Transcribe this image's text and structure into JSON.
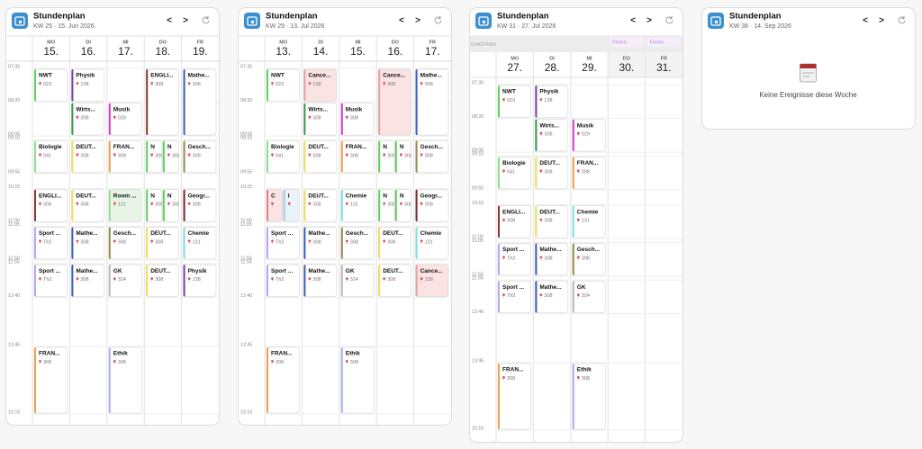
{
  "cards": [
    {
      "title": "Stundenplan",
      "subtitle": "KW 25 · 15. Jun 2026",
      "prev": "<",
      "next": ">",
      "times": [
        "07:35",
        "08:20",
        "09:05",
        "09:10",
        "09:55",
        "10:15",
        "11:00",
        "11:05",
        "11:50",
        "11:55",
        "12:40",
        "13:45",
        "15:15"
      ],
      "days": [
        {
          "dow": "MO",
          "date": "15.",
          "events": [
            {
              "title": "NWT",
              "room": "023",
              "color": "#5fd35f"
            },
            {
              "title": "Biologie",
              "room": "041",
              "color": "#8fe08f"
            },
            {
              "title": "ENGLI...",
              "room": "308",
              "color": "#8a3a2a"
            },
            {
              "title": "Sport ...",
              "room": "Th2",
              "color": "#b9a8f0"
            },
            {
              "title": "Sport ...",
              "room": "Th2",
              "color": "#b9a8f0"
            },
            {
              "title": "FRAN...",
              "room": "308",
              "color": "#f0a050"
            }
          ]
        },
        {
          "dow": "DI",
          "date": "16.",
          "events": [
            {
              "title": "Physik",
              "room": "138",
              "color": "#7a3fb0"
            },
            {
              "title": "Wirts...",
              "room": "308",
              "color": "#3a9a4a"
            },
            {
              "title": "DEUT...",
              "room": "308",
              "color": "#f0e060"
            },
            {
              "title": "DEUT...",
              "room": "308",
              "color": "#f0e060"
            },
            {
              "title": "Mathe...",
              "room": "308",
              "color": "#3a60c0"
            },
            {
              "title": "Mathe...",
              "room": "308",
              "color": "#3a60c0"
            }
          ]
        },
        {
          "dow": "MI",
          "date": "17.",
          "events": [
            {
              "title": "Musik",
              "room": "029",
              "color": "#d040d0"
            },
            {
              "title": "FRAN...",
              "room": "308",
              "color": "#f0a050"
            },
            {
              "title": "Room ...",
              "room": "121",
              "color": "#9bd89b",
              "fill": "#e6f5e6"
            },
            {
              "title": "Gesch...",
              "room": "308",
              "color": "#9a8a50"
            },
            {
              "title": "GK",
              "room": "324",
              "color": "#bbbbbb"
            },
            {
              "title": "Ethik",
              "room": "308",
              "color": "#a9b4e8"
            }
          ]
        },
        {
          "dow": "DO",
          "date": "18.",
          "events": [
            {
              "title": "ENGLI...",
              "room": "308",
              "color": "#8a3a2a"
            },
            {
              "title": "N",
              "room": "308",
              "color": "#5fd35f"
            },
            {
              "title": "N",
              "room": "308",
              "color": "#5fd35f"
            },
            {
              "title": "N",
              "room": "308",
              "color": "#5fd35f"
            },
            {
              "title": "N",
              "room": "308",
              "color": "#5fd35f"
            },
            {
              "title": "DEUT...",
              "room": "308",
              "color": "#f0e060"
            },
            {
              "title": "DEUT...",
              "room": "308",
              "color": "#f0e060"
            }
          ]
        },
        {
          "dow": "FR",
          "date": "19.",
          "events": [
            {
              "title": "Mathe...",
              "room": "308",
              "color": "#3a60c0"
            },
            {
              "title": "Gesch...",
              "room": "308",
              "color": "#9a8a50"
            },
            {
              "title": "Geogr...",
              "room": "308",
              "color": "#7a2a2a"
            },
            {
              "title": "Chemie",
              "room": "131",
              "color": "#80e0e8"
            },
            {
              "title": "Physik",
              "room": "138",
              "color": "#7a3fb0"
            }
          ]
        }
      ]
    },
    {
      "title": "Stundenplan",
      "subtitle": "KW 29 · 13. Jul 2026",
      "prev": "<",
      "next": ">",
      "times": [
        "07:35",
        "08:20",
        "09:05",
        "09:10",
        "09:55",
        "10:15",
        "11:00",
        "11:05",
        "11:50",
        "11:55",
        "12:40",
        "13:45",
        "15:15"
      ],
      "days": [
        {
          "dow": "MO",
          "date": "13.",
          "events": [
            {
              "title": "NWT",
              "room": "023",
              "color": "#5fd35f"
            },
            {
              "title": "Biologie",
              "room": "041",
              "color": "#8fe08f"
            },
            {
              "title": "C",
              "color": "#e08080",
              "fill": "#fbe3e3"
            },
            {
              "title": "I",
              "color": "#a8c8e8",
              "fill": "#eaf2fa"
            },
            {
              "title": "Sport ...",
              "room": "Th2",
              "color": "#b9a8f0"
            },
            {
              "title": "Sport ...",
              "room": "Th2",
              "color": "#b9a8f0"
            },
            {
              "title": "FRAN...",
              "room": "308",
              "color": "#f0a050"
            }
          ]
        },
        {
          "dow": "DI",
          "date": "14.",
          "events": [
            {
              "title": "Cance...",
              "room": "138",
              "color": "#e8a0a0",
              "fill": "#fbe3e3"
            },
            {
              "title": "Wirts...",
              "room": "308",
              "color": "#3a9a4a"
            },
            {
              "title": "DEUT...",
              "room": "308",
              "color": "#f0e060"
            },
            {
              "title": "DEUT...",
              "room": "308",
              "color": "#f0e060"
            },
            {
              "title": "Mathe...",
              "room": "308",
              "color": "#3a60c0"
            },
            {
              "title": "Mathe...",
              "room": "308",
              "color": "#3a60c0"
            }
          ]
        },
        {
          "dow": "MI",
          "date": "15.",
          "events": [
            {
              "title": "Musik",
              "room": "308",
              "color": "#d040d0"
            },
            {
              "title": "FRAN...",
              "room": "308",
              "color": "#f0a050"
            },
            {
              "title": "Chemie",
              "room": "131",
              "color": "#80e0e8"
            },
            {
              "title": "Gesch...",
              "room": "308",
              "color": "#9a8a50"
            },
            {
              "title": "GK",
              "room": "324",
              "color": "#bbbbbb"
            },
            {
              "title": "Ethik",
              "room": "308",
              "color": "#a9b4e8"
            }
          ]
        },
        {
          "dow": "DO",
          "date": "16.",
          "events": [
            {
              "title": "Cance...",
              "room": "308",
              "color": "#e8a0a0",
              "fill": "#fbe3e3"
            },
            {
              "title": "N",
              "room": "308",
              "color": "#5fd35f"
            },
            {
              "title": "N",
              "room": "308",
              "color": "#5fd35f"
            },
            {
              "title": "N",
              "room": "308",
              "color": "#5fd35f"
            },
            {
              "title": "N",
              "room": "308",
              "color": "#5fd35f"
            },
            {
              "title": "DEUT...",
              "room": "308",
              "color": "#f0e060"
            },
            {
              "title": "DEUT...",
              "room": "308",
              "color": "#f0e060"
            }
          ]
        },
        {
          "dow": "FR",
          "date": "17.",
          "events": [
            {
              "title": "Mathe...",
              "room": "308",
              "color": "#3a60c0"
            },
            {
              "title": "Gesch...",
              "room": "308",
              "color": "#9a8a50"
            },
            {
              "title": "Geogr...",
              "room": "308",
              "color": "#7a2a2a"
            },
            {
              "title": "Chemie",
              "room": "131",
              "color": "#80e0e8"
            },
            {
              "title": "Cance...",
              "room": "138",
              "color": "#e8a0a0",
              "fill": "#fbe3e3"
            }
          ]
        }
      ]
    },
    {
      "title": "Stundenplan",
      "subtitle": "KW 31 · 27. Jul 2026",
      "prev": "<",
      "next": ">",
      "allday_label": "GANZTÄGIG",
      "times": [
        "07:35",
        "08:20",
        "09:05",
        "09:10",
        "09:55",
        "10:15",
        "11:00",
        "11:05",
        "11:50",
        "11:55",
        "12:40",
        "13:45",
        "15:15"
      ],
      "days": [
        {
          "dow": "MO",
          "date": "27.",
          "events": [
            {
              "title": "NWT",
              "room": "023",
              "color": "#5fd35f"
            },
            {
              "title": "Biologie",
              "room": "041",
              "color": "#8fe08f"
            },
            {
              "title": "ENGLI...",
              "room": "308",
              "color": "#8a3a2a"
            },
            {
              "title": "Sport ...",
              "room": "Th2",
              "color": "#b9a8f0"
            },
            {
              "title": "Sport ...",
              "room": "Th2",
              "color": "#b9a8f0"
            },
            {
              "title": "FRAN...",
              "room": "308",
              "color": "#f0a050"
            }
          ]
        },
        {
          "dow": "DI",
          "date": "28.",
          "events": [
            {
              "title": "Physik",
              "room": "138",
              "color": "#7a3fb0"
            },
            {
              "title": "Wirts...",
              "room": "308",
              "color": "#3a9a4a"
            },
            {
              "title": "DEUT...",
              "room": "308",
              "color": "#f0e060"
            },
            {
              "title": "DEUT...",
              "room": "308",
              "color": "#f0e060"
            },
            {
              "title": "Mathe...",
              "room": "308",
              "color": "#3a60c0"
            },
            {
              "title": "Mathe...",
              "room": "308",
              "color": "#3a60c0"
            }
          ]
        },
        {
          "dow": "MI",
          "date": "29.",
          "events": [
            {
              "title": "Musik",
              "room": "029",
              "color": "#d040d0"
            },
            {
              "title": "FRAN...",
              "room": "308",
              "color": "#f0a050"
            },
            {
              "title": "Chemie",
              "room": "131",
              "color": "#80e0e8"
            },
            {
              "title": "Gesch...",
              "room": "308",
              "color": "#9a8a50"
            },
            {
              "title": "GK",
              "room": "324",
              "color": "#bbbbbb"
            },
            {
              "title": "Ethik",
              "room": "308",
              "color": "#a9b4e8"
            }
          ]
        },
        {
          "dow": "DO",
          "date": "30.",
          "allday": "Ferien",
          "events": []
        },
        {
          "dow": "FR",
          "date": "31.",
          "allday": "Ferien",
          "events": []
        }
      ]
    },
    {
      "title": "Stundenplan",
      "subtitle": "KW 38 · 14. Sep 2026",
      "prev": "<",
      "next": ">",
      "empty": "Keine Ereignisse diese Woche"
    }
  ]
}
